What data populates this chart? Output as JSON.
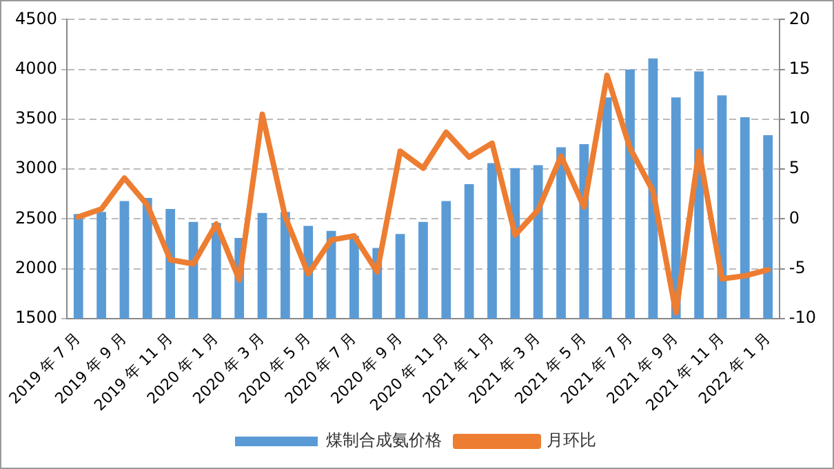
{
  "chart_data": {
    "type": "bar",
    "categories": [
      "2019 年 7 月",
      null,
      "2019 年 9 月",
      null,
      "2019 年 11 月",
      null,
      "2020 年 1 月",
      null,
      "2020 年 3 月",
      null,
      "2020 年 5 月",
      null,
      "2020 年 7 月",
      null,
      "2020 年 9 月",
      null,
      "2020 年 11 月",
      null,
      "2021 年 1 月",
      null,
      "2021 年 3 月",
      null,
      "2021 年 5 月",
      null,
      "2021 年 7 月",
      null,
      "2021 年 9 月",
      null,
      "2021 年 11 月",
      null,
      "2022 年 1 月"
    ],
    "series": [
      {
        "name": "煤制合成氨价格",
        "color": "#5b9bd5",
        "values": [
          2550,
          2570,
          2680,
          2710,
          2600,
          2470,
          2460,
          2310,
          2560,
          2570,
          2430,
          2380,
          2330,
          2210,
          2350,
          2470,
          2680,
          2850,
          3060,
          3010,
          3040,
          3220,
          3250,
          3720,
          4000,
          4110,
          3720,
          3980,
          3740,
          3520,
          3340
        ]
      },
      {
        "name": "月环比",
        "type": "line",
        "axis": "y2",
        "color": "#ed7d31",
        "values": [
          0.2,
          1.0,
          4.1,
          1.4,
          -4.1,
          -4.5,
          -0.5,
          -6.1,
          10.5,
          0.2,
          -5.5,
          -2.1,
          -1.7,
          -5.3,
          6.8,
          5.1,
          8.7,
          6.2,
          7.6,
          -1.6,
          0.9,
          6.3,
          1.2,
          14.4,
          7.1,
          2.8,
          -9.4,
          6.8,
          -6.0,
          -5.7,
          -5.1
        ]
      }
    ],
    "ylim": [
      1500,
      4500
    ],
    "yticks": [
      1500,
      2000,
      2500,
      3000,
      3500,
      4000,
      4500
    ],
    "y2lim": [
      -10,
      20
    ],
    "y2ticks": [
      -10,
      -5,
      0,
      5,
      10,
      15,
      20
    ],
    "grid": "y",
    "legend": "bottom",
    "marker": "none",
    "line_style": "solid"
  }
}
